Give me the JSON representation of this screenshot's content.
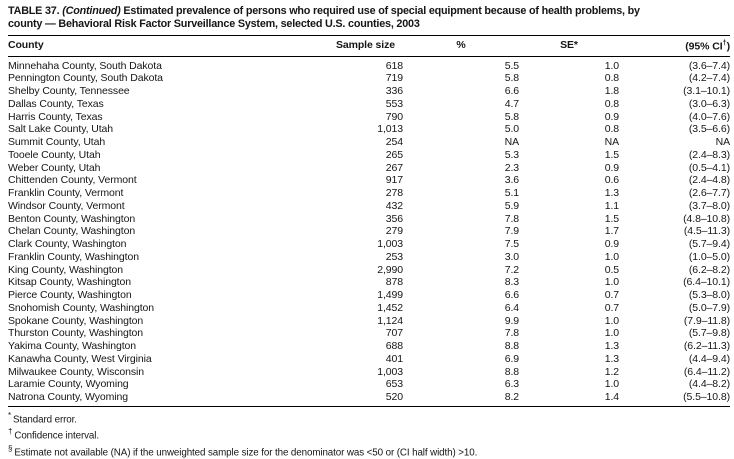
{
  "title": {
    "prefix": "TABLE 37.",
    "continued": "(Continued)",
    "line1_rest": "Estimated prevalence of persons who required use of special equipment because of health problems, by",
    "line2": "county — Behavioral Risk Factor Surveillance System, selected U.S. counties, 2003"
  },
  "table": {
    "headers": {
      "county": "County",
      "sample_size": "Sample size",
      "percent": "%",
      "se": "SE*",
      "ci_pre": "(95% CI",
      "ci_sup": "†",
      "ci_post": ")"
    },
    "rows": [
      [
        "Minnehaha County, South Dakota",
        "618",
        "5.5",
        "1.0",
        "(3.6–7.4)"
      ],
      [
        "Pennington County, South Dakota",
        "719",
        "5.8",
        "0.8",
        "(4.2–7.4)"
      ],
      [
        "Shelby County, Tennessee",
        "336",
        "6.6",
        "1.8",
        "(3.1–10.1)"
      ],
      [
        "Dallas County, Texas",
        "553",
        "4.7",
        "0.8",
        "(3.0–6.3)"
      ],
      [
        "Harris County, Texas",
        "790",
        "5.8",
        "0.9",
        "(4.0–7.6)"
      ],
      [
        "Salt Lake County, Utah",
        "1,013",
        "5.0",
        "0.8",
        "(3.5–6.6)"
      ],
      [
        "Summit County, Utah",
        "254",
        "NA",
        "NA",
        "NA"
      ],
      [
        "Tooele County, Utah",
        "265",
        "5.3",
        "1.5",
        "(2.4–8.3)"
      ],
      [
        "Weber County, Utah",
        "267",
        "2.3",
        "0.9",
        "(0.5–4.1)"
      ],
      [
        "Chittenden County, Vermont",
        "917",
        "3.6",
        "0.6",
        "(2.4–4.8)"
      ],
      [
        "Franklin County, Vermont",
        "278",
        "5.1",
        "1.3",
        "(2.6–7.7)"
      ],
      [
        "Windsor County, Vermont",
        "432",
        "5.9",
        "1.1",
        "(3.7–8.0)"
      ],
      [
        "Benton County, Washington",
        "356",
        "7.8",
        "1.5",
        "(4.8–10.8)"
      ],
      [
        "Chelan County, Washington",
        "279",
        "7.9",
        "1.7",
        "(4.5–11.3)"
      ],
      [
        "Clark County, Washington",
        "1,003",
        "7.5",
        "0.9",
        "(5.7–9.4)"
      ],
      [
        "Franklin County, Washington",
        "253",
        "3.0",
        "1.0",
        "(1.0–5.0)"
      ],
      [
        "King County, Washington",
        "2,990",
        "7.2",
        "0.5",
        "(6.2–8.2)"
      ],
      [
        "Kitsap County, Washington",
        "878",
        "8.3",
        "1.0",
        "(6.4–10.1)"
      ],
      [
        "Pierce County, Washington",
        "1,499",
        "6.6",
        "0.7",
        "(5.3–8.0)"
      ],
      [
        "Snohomish County, Washington",
        "1,452",
        "6.4",
        "0.7",
        "(5.0–7.9)"
      ],
      [
        "Spokane County, Washington",
        "1,124",
        "9.9",
        "1.0",
        "(7.9–11.8)"
      ],
      [
        "Thurston County, Washington",
        "707",
        "7.8",
        "1.0",
        "(5.7–9.8)"
      ],
      [
        "Yakima County, Washington",
        "688",
        "8.8",
        "1.3",
        "(6.2–11.3)"
      ],
      [
        "Kanawha County, West Virginia",
        "401",
        "6.9",
        "1.3",
        "(4.4–9.4)"
      ],
      [
        "Milwaukee County, Wisconsin",
        "1,003",
        "8.8",
        "1.2",
        "(6.4–11.2)"
      ],
      [
        "Laramie County, Wyoming",
        "653",
        "6.3",
        "1.0",
        "(4.4–8.2)"
      ],
      [
        "Natrona County, Wyoming",
        "520",
        "8.2",
        "1.4",
        "(5.5–10.8)"
      ]
    ]
  },
  "footnotes": [
    {
      "marker": "*",
      "text": "Standard error."
    },
    {
      "marker": "†",
      "text": "Confidence interval."
    },
    {
      "marker": "§",
      "text": "Estimate not available (NA) if the unweighted sample size for the denominator was <50 or (CI half width) >10."
    }
  ]
}
